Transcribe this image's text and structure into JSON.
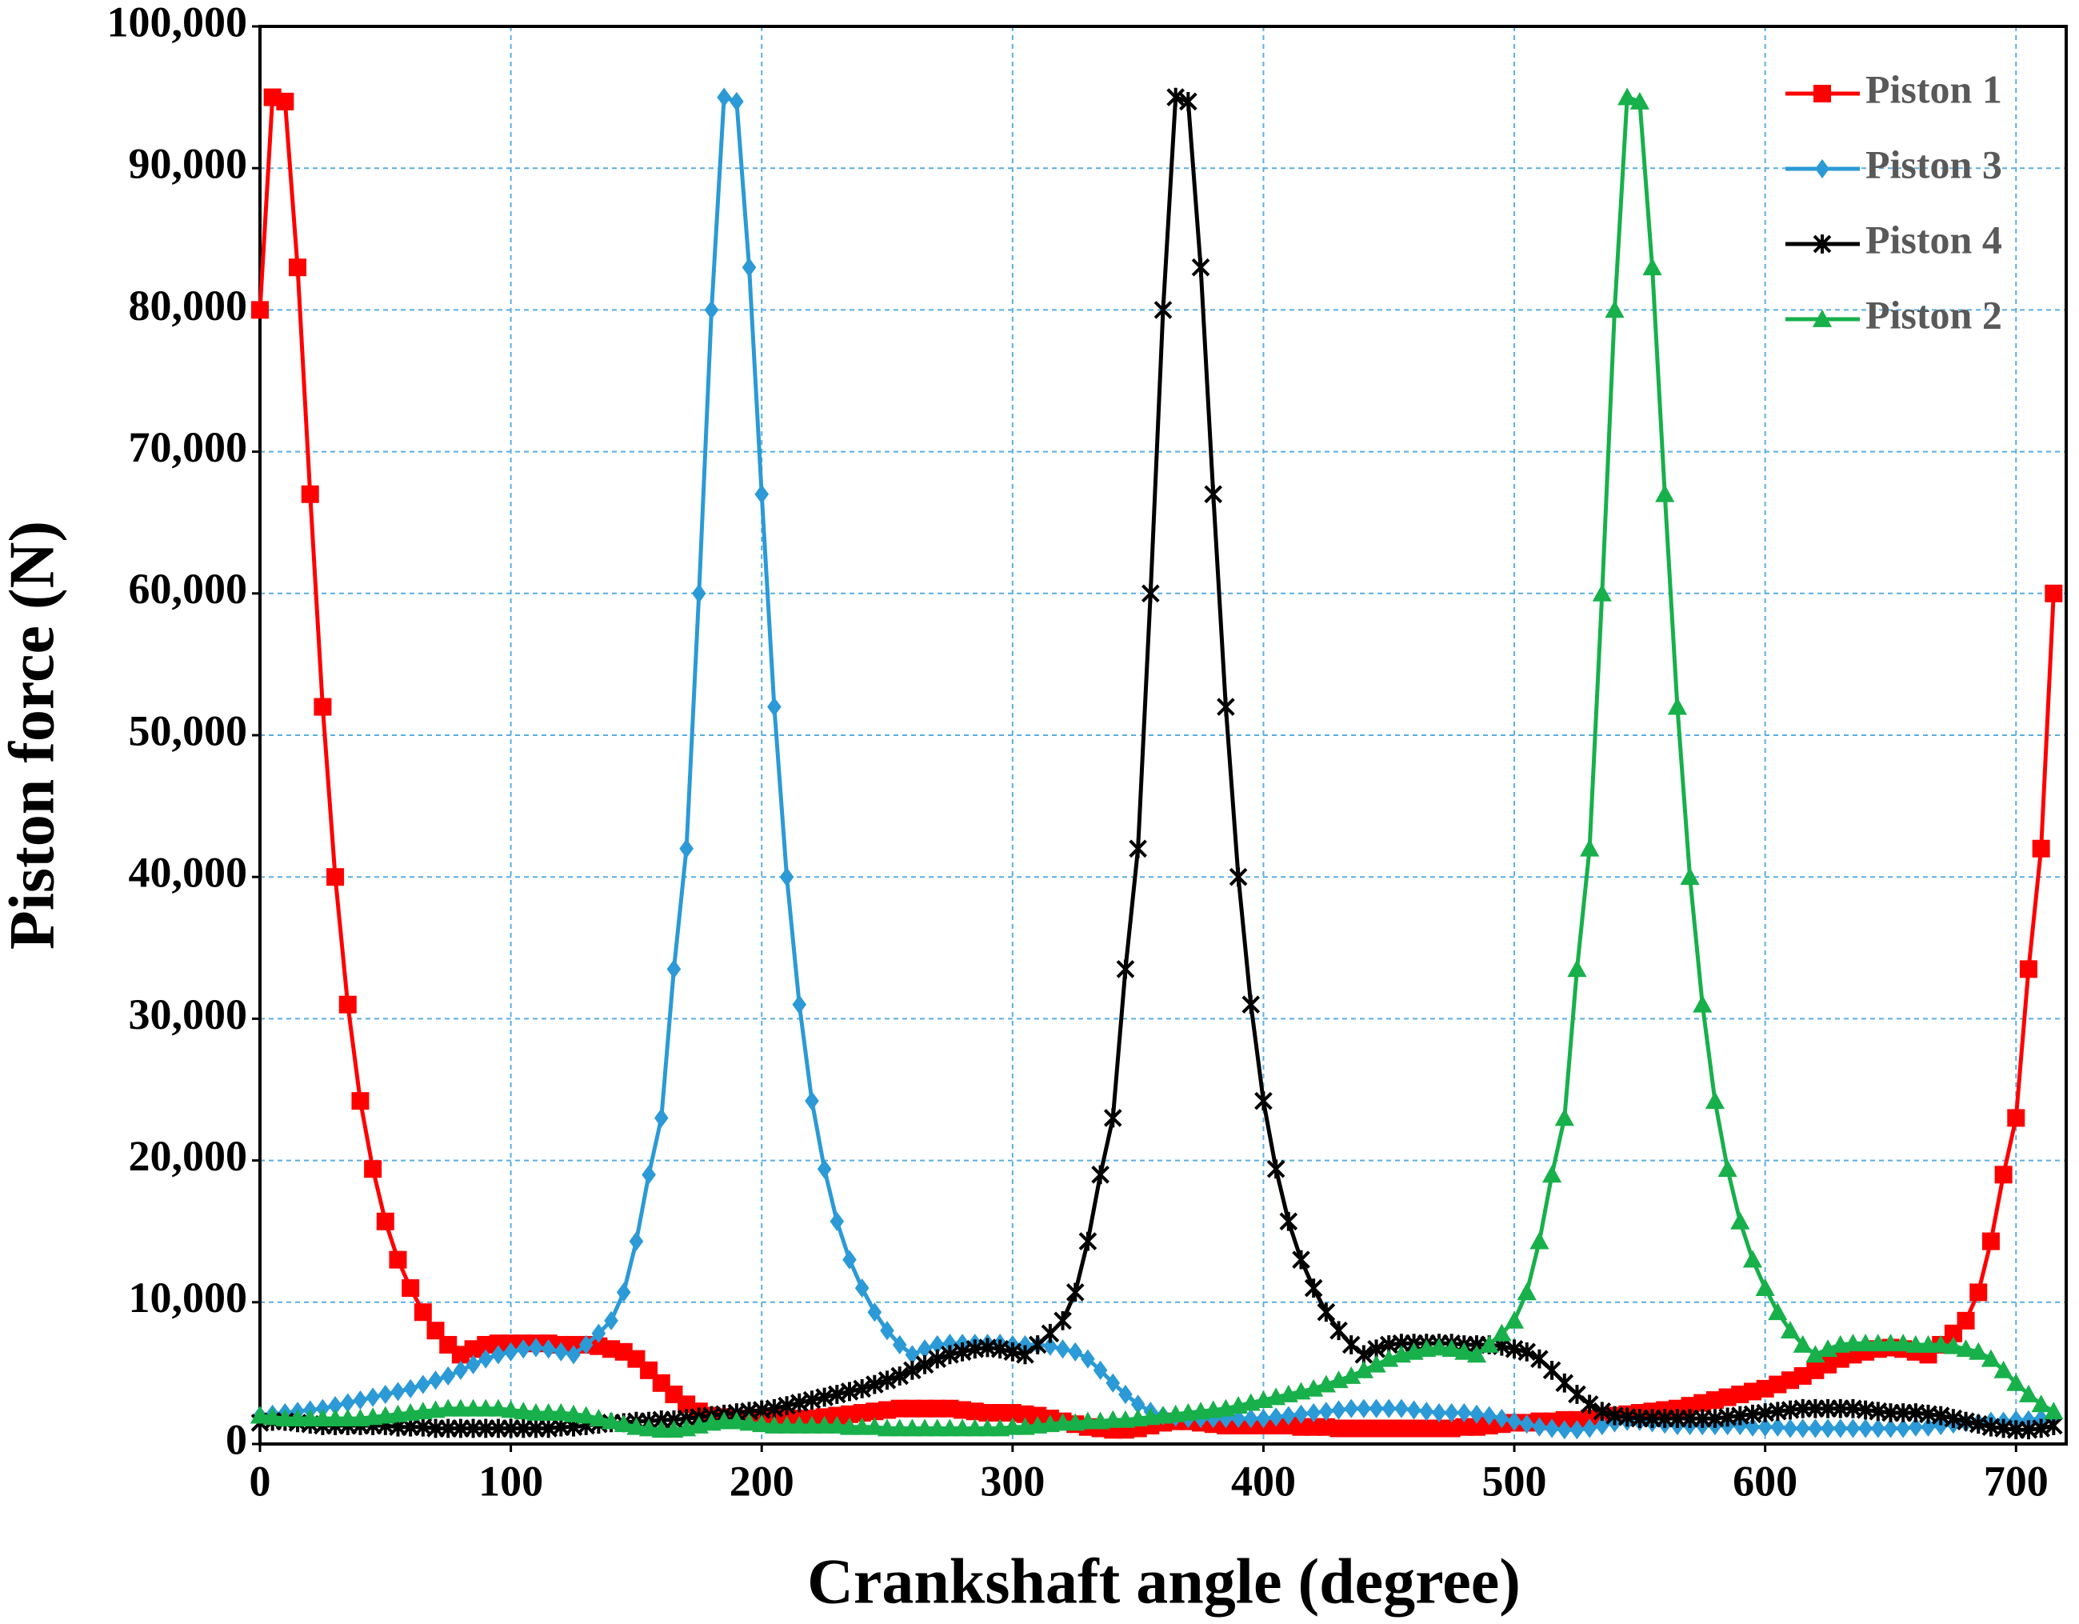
{
  "chart_data": {
    "type": "line",
    "xlabel": "Crankshaft angle (degree)",
    "ylabel": "Piston force (N)",
    "x": [
      0,
      5,
      10,
      15,
      20,
      25,
      30,
      35,
      40,
      45,
      50,
      55,
      60,
      65,
      70,
      75,
      80,
      85,
      90,
      95,
      100,
      105,
      110,
      115,
      120,
      125,
      130,
      135,
      140,
      145,
      150,
      155,
      160,
      165,
      170,
      175,
      180,
      185,
      190,
      195,
      200,
      205,
      210,
      215,
      220,
      225,
      230,
      235,
      240,
      245,
      250,
      255,
      260,
      265,
      270,
      275,
      280,
      285,
      290,
      295,
      300,
      305,
      310,
      315,
      320,
      325,
      330,
      335,
      340,
      345,
      350,
      355,
      360,
      365,
      370,
      375,
      380,
      385,
      390,
      395,
      400,
      405,
      410,
      415,
      420,
      425,
      430,
      435,
      440,
      445,
      450,
      455,
      460,
      465,
      470,
      475,
      480,
      485,
      490,
      495,
      500,
      505,
      510,
      515,
      520,
      525,
      530,
      535,
      540,
      545,
      550,
      555,
      560,
      565,
      570,
      575,
      580,
      585,
      590,
      595,
      600,
      605,
      610,
      615,
      620,
      625,
      630,
      635,
      640,
      645,
      650,
      655,
      660,
      665,
      670,
      675,
      680,
      685,
      690,
      695,
      700,
      705,
      710,
      715
    ],
    "series": [
      {
        "name": "Piston 1",
        "color": "#ff0000",
        "marker": "square",
        "values": [
          80000,
          95000,
          94700,
          83000,
          67000,
          52000,
          40000,
          31000,
          24200,
          19400,
          15700,
          13000,
          11000,
          9300,
          8000,
          7000,
          6300,
          6700,
          7000,
          7100,
          7100,
          7100,
          7100,
          7100,
          7000,
          7000,
          7000,
          6900,
          6700,
          6500,
          6000,
          5200,
          4300,
          3500,
          2800,
          2300,
          2000,
          1900,
          1800,
          1800,
          1800,
          1800,
          1800,
          1800,
          1800,
          1900,
          2000,
          2100,
          2200,
          2300,
          2400,
          2500,
          2500,
          2500,
          2500,
          2500,
          2400,
          2300,
          2200,
          2200,
          2200,
          2100,
          2000,
          1800,
          1600,
          1400,
          1200,
          1100,
          1000,
          1000,
          1100,
          1300,
          1500,
          1600,
          1600,
          1500,
          1400,
          1300,
          1300,
          1300,
          1300,
          1300,
          1300,
          1200,
          1200,
          1200,
          1100,
          1100,
          1100,
          1100,
          1100,
          1100,
          1100,
          1100,
          1100,
          1100,
          1200,
          1200,
          1300,
          1400,
          1500,
          1500,
          1600,
          1600,
          1700,
          1700,
          1800,
          1900,
          2000,
          2100,
          2200,
          2300,
          2400,
          2500,
          2700,
          2900,
          3100,
          3300,
          3500,
          3700,
          3900,
          4200,
          4500,
          4800,
          5200,
          5600,
          6000,
          6300,
          6500,
          6700,
          6800,
          6700,
          6500,
          6300,
          7000,
          7800,
          8700,
          10700,
          14300,
          19000,
          23000,
          33500,
          42000,
          60000
        ]
      },
      {
        "name": "Piston 3",
        "color": "#2b9ad6",
        "marker": "diamond",
        "values": [
          2000,
          2100,
          2200,
          2300,
          2400,
          2500,
          2700,
          2900,
          3100,
          3300,
          3500,
          3700,
          3900,
          4200,
          4500,
          4800,
          5200,
          5600,
          6000,
          6300,
          6500,
          6700,
          6800,
          6700,
          6500,
          6300,
          7000,
          7800,
          8700,
          10700,
          14300,
          19000,
          23000,
          33500,
          42000,
          60000,
          80000,
          95000,
          94700,
          83000,
          67000,
          52000,
          40000,
          31000,
          24200,
          19400,
          15700,
          13000,
          11000,
          9300,
          8000,
          7000,
          6300,
          6700,
          7000,
          7100,
          7100,
          7100,
          7100,
          7100,
          7000,
          7000,
          7000,
          6900,
          6700,
          6500,
          6000,
          5200,
          4300,
          3500,
          2800,
          2300,
          2000,
          1900,
          1800,
          1800,
          1800,
          1800,
          1800,
          1800,
          1800,
          1900,
          2000,
          2100,
          2200,
          2300,
          2400,
          2500,
          2500,
          2500,
          2500,
          2500,
          2400,
          2300,
          2200,
          2200,
          2200,
          2100,
          2000,
          1800,
          1600,
          1400,
          1200,
          1100,
          1000,
          1000,
          1100,
          1300,
          1500,
          1600,
          1600,
          1500,
          1400,
          1300,
          1300,
          1300,
          1300,
          1300,
          1300,
          1200,
          1200,
          1200,
          1100,
          1100,
          1100,
          1100,
          1100,
          1100,
          1100,
          1100,
          1100,
          1100,
          1200,
          1200,
          1300,
          1400,
          1500,
          1500,
          1600,
          1600,
          1700,
          1700,
          1800,
          1900
        ]
      },
      {
        "name": "Piston 4",
        "color": "#000000",
        "marker": "asterisk",
        "values": [
          1500,
          1600,
          1600,
          1500,
          1400,
          1300,
          1300,
          1300,
          1300,
          1300,
          1300,
          1200,
          1200,
          1200,
          1100,
          1100,
          1100,
          1100,
          1100,
          1100,
          1100,
          1100,
          1100,
          1100,
          1200,
          1200,
          1300,
          1400,
          1500,
          1500,
          1600,
          1600,
          1700,
          1700,
          1800,
          1900,
          2000,
          2100,
          2200,
          2300,
          2400,
          2500,
          2700,
          2900,
          3100,
          3300,
          3500,
          3700,
          3900,
          4200,
          4500,
          4800,
          5200,
          5600,
          6000,
          6300,
          6500,
          6700,
          6800,
          6700,
          6500,
          6300,
          7000,
          7800,
          8700,
          10700,
          14300,
          19000,
          23000,
          33500,
          42000,
          60000,
          80000,
          95000,
          94700,
          83000,
          67000,
          52000,
          40000,
          31000,
          24200,
          19400,
          15700,
          13000,
          11000,
          9300,
          8000,
          7000,
          6300,
          6700,
          7000,
          7100,
          7100,
          7100,
          7100,
          7100,
          7000,
          7000,
          7000,
          6900,
          6700,
          6500,
          6000,
          5200,
          4300,
          3500,
          2800,
          2300,
          2000,
          1900,
          1800,
          1800,
          1800,
          1800,
          1800,
          1800,
          1800,
          1900,
          2000,
          2100,
          2200,
          2300,
          2400,
          2500,
          2500,
          2500,
          2500,
          2500,
          2400,
          2300,
          2200,
          2200,
          2200,
          2100,
          2000,
          1800,
          1600,
          1400,
          1200,
          1100,
          1000,
          1000,
          1100,
          1300
        ]
      },
      {
        "name": "Piston 2",
        "color": "#17b04a",
        "marker": "triangle",
        "values": [
          2000,
          1900,
          1800,
          1800,
          1800,
          1800,
          1800,
          1800,
          1800,
          1900,
          2000,
          2100,
          2200,
          2300,
          2400,
          2500,
          2500,
          2500,
          2500,
          2500,
          2400,
          2300,
          2200,
          2200,
          2200,
          2100,
          2000,
          1800,
          1600,
          1400,
          1200,
          1100,
          1000,
          1000,
          1100,
          1300,
          1500,
          1600,
          1600,
          1500,
          1400,
          1300,
          1300,
          1300,
          1300,
          1300,
          1300,
          1200,
          1200,
          1200,
          1100,
          1100,
          1100,
          1100,
          1100,
          1100,
          1100,
          1100,
          1100,
          1100,
          1200,
          1200,
          1300,
          1400,
          1500,
          1500,
          1600,
          1600,
          1700,
          1700,
          1800,
          1900,
          2000,
          2100,
          2200,
          2300,
          2400,
          2500,
          2700,
          2900,
          3100,
          3300,
          3500,
          3700,
          3900,
          4200,
          4500,
          4800,
          5200,
          5600,
          6000,
          6300,
          6500,
          6700,
          6800,
          6700,
          6500,
          6300,
          7000,
          7800,
          8700,
          10700,
          14300,
          19000,
          23000,
          33500,
          42000,
          60000,
          80000,
          95000,
          94700,
          83000,
          67000,
          52000,
          40000,
          31000,
          24200,
          19400,
          15700,
          13000,
          11000,
          9300,
          8000,
          7000,
          6300,
          6700,
          7000,
          7100,
          7100,
          7100,
          7100,
          7100,
          7000,
          7000,
          7000,
          6900,
          6700,
          6500,
          6000,
          5200,
          4300,
          3500,
          2800,
          2300
        ]
      }
    ],
    "xlim": [
      0,
      720
    ],
    "xticks": [
      0,
      100,
      200,
      300,
      400,
      500,
      600,
      700
    ],
    "ylim": [
      0,
      100000
    ],
    "yticks": [
      0,
      {
        "value": 10000,
        "label": "10,000"
      },
      {
        "value": 20000,
        "label": "20,000"
      },
      {
        "value": 30000,
        "label": "30,000"
      },
      {
        "value": 40000,
        "label": "40,000"
      },
      {
        "value": 50000,
        "label": "50,000"
      },
      {
        "value": 60000,
        "label": "60,000"
      },
      {
        "value": 70000,
        "label": "70,000"
      },
      {
        "value": 80000,
        "label": "80,000"
      },
      {
        "value": 90000,
        "label": "90,000"
      },
      {
        "value": 100000,
        "label": "100,000"
      }
    ],
    "grid": true,
    "legend": "upper right"
  }
}
